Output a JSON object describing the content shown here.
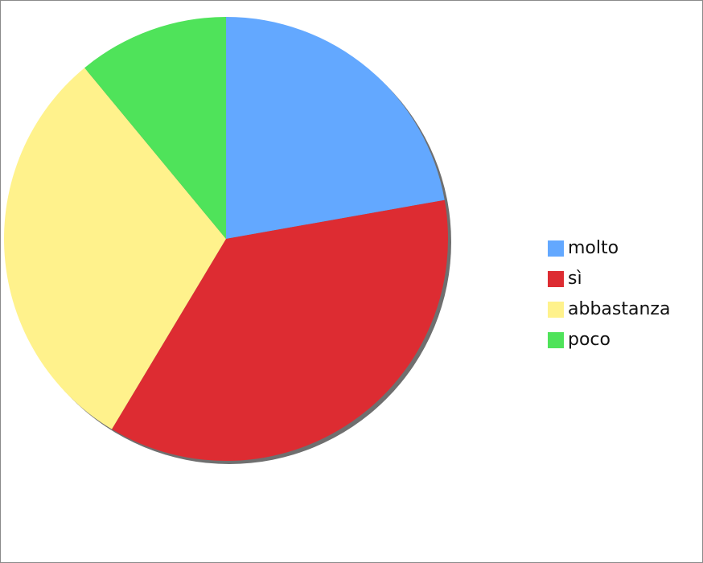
{
  "chart_data": {
    "type": "pie",
    "title": "",
    "slices": [
      {
        "label": "molto",
        "value": 22.2,
        "color": "#63a8ff"
      },
      {
        "label": "sì",
        "value": 36.4,
        "color": "#dd2c32"
      },
      {
        "label": "abbastanza",
        "value": 30.4,
        "color": "#fff28c"
      },
      {
        "label": "poco",
        "value": 11.0,
        "color": "#4fe35a"
      }
    ],
    "legend_position": "right",
    "shadow": true
  }
}
